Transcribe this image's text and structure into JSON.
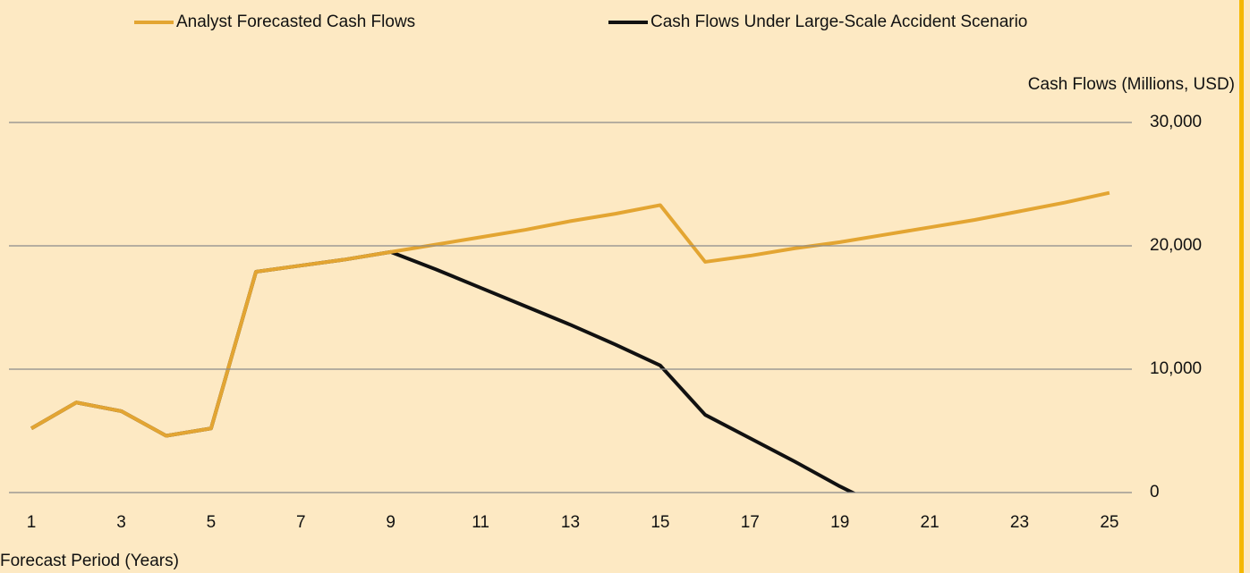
{
  "chart_data": {
    "type": "line",
    "x_label": "Forecast Period (Years)",
    "y_label": "Cash Flows (Millions, USD)",
    "x": [
      1,
      2,
      3,
      4,
      5,
      6,
      7,
      8,
      9,
      10,
      11,
      12,
      13,
      14,
      15,
      16,
      17,
      18,
      19,
      20,
      21,
      22,
      23,
      24,
      25
    ],
    "series": [
      {
        "name": "Analyst Forecasted Cash Flows",
        "color": "#e3a532",
        "values": [
          5200,
          7300,
          6600,
          4600,
          5200,
          17900,
          18400,
          18900,
          19500,
          20100,
          20700,
          21300,
          22000,
          22600,
          23300,
          18700,
          19200,
          19800,
          20300,
          20900,
          21500,
          22100,
          22800,
          23500,
          24300
        ]
      },
      {
        "name": "Cash Flows Under Large-Scale Accident Scenario",
        "color": "#111111",
        "values": [
          5200,
          7300,
          6600,
          4600,
          5200,
          17900,
          18400,
          18900,
          19500,
          18100,
          16600,
          15100,
          13600,
          12000,
          10300,
          6300,
          4400,
          2500,
          500,
          -1300,
          null,
          null,
          null,
          null,
          null
        ]
      }
    ],
    "xlim": [
      0.5,
      25.5
    ],
    "ylim": [
      0,
      30000
    ],
    "xticks": [
      1,
      3,
      5,
      7,
      9,
      11,
      13,
      15,
      17,
      19,
      21,
      23,
      25
    ],
    "yticks": [
      0,
      {
        "value": 10000,
        "label": "10,000"
      },
      {
        "value": 20000,
        "label": "20,000"
      },
      {
        "value": 30000,
        "label": "30,000"
      }
    ],
    "grid": true
  }
}
